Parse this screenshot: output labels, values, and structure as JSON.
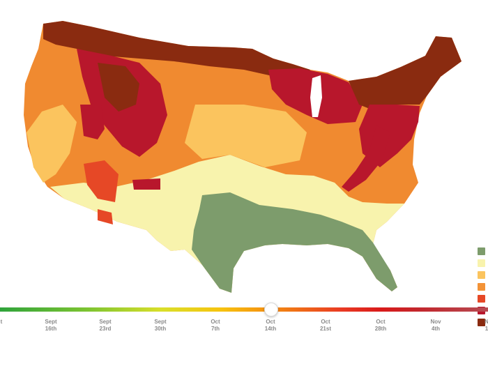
{
  "legend": {
    "swatches": [
      "#7d9c6c",
      "#f8f3ad",
      "#fbc45e",
      "#f39337",
      "#e64826",
      "#b8172c",
      "#8a2b10"
    ]
  },
  "timeline": {
    "gradient_colors": [
      "#2fa33b",
      "#7dc431",
      "#d9df2a",
      "#f6c40f",
      "#f59a10",
      "#f07316",
      "#e93a23",
      "#d91a1a",
      "#c2272d",
      "#b74b52"
    ],
    "selected": "Oct\n14th",
    "ticks": [
      {
        "label": "t"
      },
      {
        "label": "Sept\n16th"
      },
      {
        "label": "Sept\n23rd"
      },
      {
        "label": "Sept\n30th"
      },
      {
        "label": "Oct\n7th"
      },
      {
        "label": "Oct\n14th"
      },
      {
        "label": "Oct\n21st"
      },
      {
        "label": "Oct\n28th"
      },
      {
        "label": "Nov\n4th"
      },
      {
        "label": "N\n1"
      }
    ]
  }
}
